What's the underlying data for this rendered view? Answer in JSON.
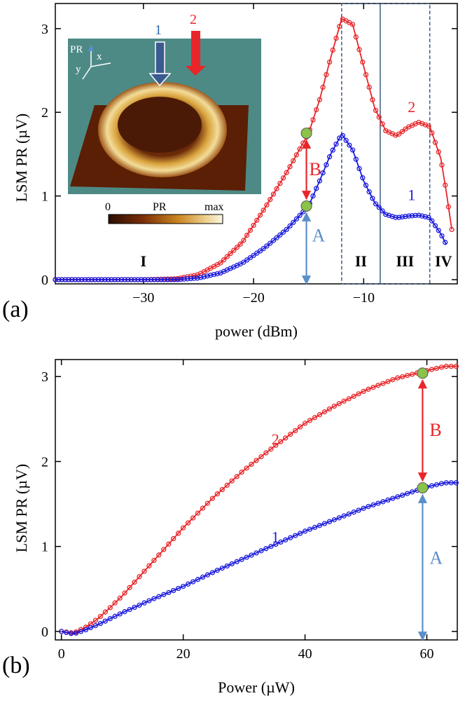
{
  "colors": {
    "red": "#e8262a",
    "blue": "#1a1adc",
    "arrow_blue": "#5b8fc9",
    "green": "#8bc34a",
    "dash": "#3a5a80",
    "inset_bg": "#4d8a86"
  },
  "chart_data": [
    {
      "type": "line",
      "panel_label": "(a)",
      "xlabel": "power (dBm)",
      "ylabel": "LSM PR (µV)",
      "xlim": [
        -38,
        -1.5
      ],
      "ylim": [
        -0.05,
        3.3
      ],
      "xticks": [
        -30,
        -20,
        -10
      ],
      "yticks": [
        0,
        1,
        2,
        3
      ],
      "region_labels": [
        "I",
        "II",
        "III",
        "IV"
      ],
      "region_bounds": [
        -12,
        -8.5,
        -4
      ],
      "series": [
        {
          "name": "2",
          "color": "#e8262a",
          "x": [
            -38,
            -30,
            -27,
            -25,
            -23,
            -21,
            -19,
            -17,
            -15,
            -14,
            -13,
            -12,
            -11,
            -10,
            -9,
            -8,
            -7,
            -6,
            -5,
            -4,
            -3,
            -2.5,
            -2
          ],
          "y": [
            0,
            0,
            0.01,
            0.06,
            0.2,
            0.45,
            0.85,
            1.28,
            1.75,
            2.15,
            2.65,
            3.12,
            3.05,
            2.55,
            2.05,
            1.78,
            1.72,
            1.82,
            1.88,
            1.83,
            1.45,
            1.05,
            0.6
          ]
        },
        {
          "name": "1",
          "color": "#1a1adc",
          "x": [
            -38,
            -30,
            -27,
            -25,
            -23,
            -21,
            -19,
            -17,
            -15,
            -14,
            -13,
            -12,
            -11,
            -10,
            -9,
            -8,
            -7,
            -6,
            -5,
            -4,
            -3,
            -2.5
          ],
          "y": [
            0,
            0,
            0,
            0.02,
            0.08,
            0.2,
            0.38,
            0.6,
            0.88,
            1.18,
            1.5,
            1.74,
            1.55,
            1.18,
            0.92,
            0.78,
            0.74,
            0.76,
            0.77,
            0.74,
            0.55,
            0.42
          ]
        }
      ],
      "markers": {
        "x": -15.2,
        "y_low": 0.88,
        "y_high": 1.75
      },
      "arrow_labels": {
        "A": "A",
        "B": "B"
      },
      "inset": {
        "scale_min": "0",
        "scale_mid": "PR",
        "scale_max": "max",
        "axis_pr": "PR",
        "axis_x": "x",
        "axis_y": "y",
        "arrow1": "1",
        "arrow2": "2"
      }
    },
    {
      "type": "line",
      "panel_label": "(b)",
      "xlabel": "Power (µW)",
      "ylabel": "LSM PR (µV)",
      "xlim": [
        -1,
        65
      ],
      "ylim": [
        -0.1,
        3.2
      ],
      "xticks": [
        0,
        20,
        40,
        60
      ],
      "yticks": [
        0,
        1,
        2,
        3
      ],
      "series": [
        {
          "name": "2",
          "color": "#e8262a",
          "x": [
            0,
            2,
            4,
            6,
            8,
            10,
            15,
            20,
            25,
            30,
            35,
            40,
            45,
            50,
            55,
            60,
            63,
            65
          ],
          "y": [
            0,
            -0.02,
            0.05,
            0.15,
            0.28,
            0.42,
            0.82,
            1.22,
            1.58,
            1.9,
            2.18,
            2.45,
            2.66,
            2.84,
            2.98,
            3.07,
            3.12,
            3.12
          ]
        },
        {
          "name": "1",
          "color": "#1a1adc",
          "x": [
            0,
            2,
            4,
            6,
            8,
            10,
            15,
            20,
            25,
            30,
            35,
            40,
            45,
            50,
            55,
            60,
            63,
            65
          ],
          "y": [
            0,
            -0.03,
            0.02,
            0.08,
            0.15,
            0.22,
            0.38,
            0.53,
            0.7,
            0.86,
            1.02,
            1.18,
            1.32,
            1.46,
            1.58,
            1.7,
            1.75,
            1.75
          ]
        }
      ],
      "markers": {
        "x": 59.3,
        "y_low": 1.69,
        "y_high": 3.04
      },
      "arrow_labels": {
        "A": "A",
        "B": "B"
      }
    }
  ]
}
